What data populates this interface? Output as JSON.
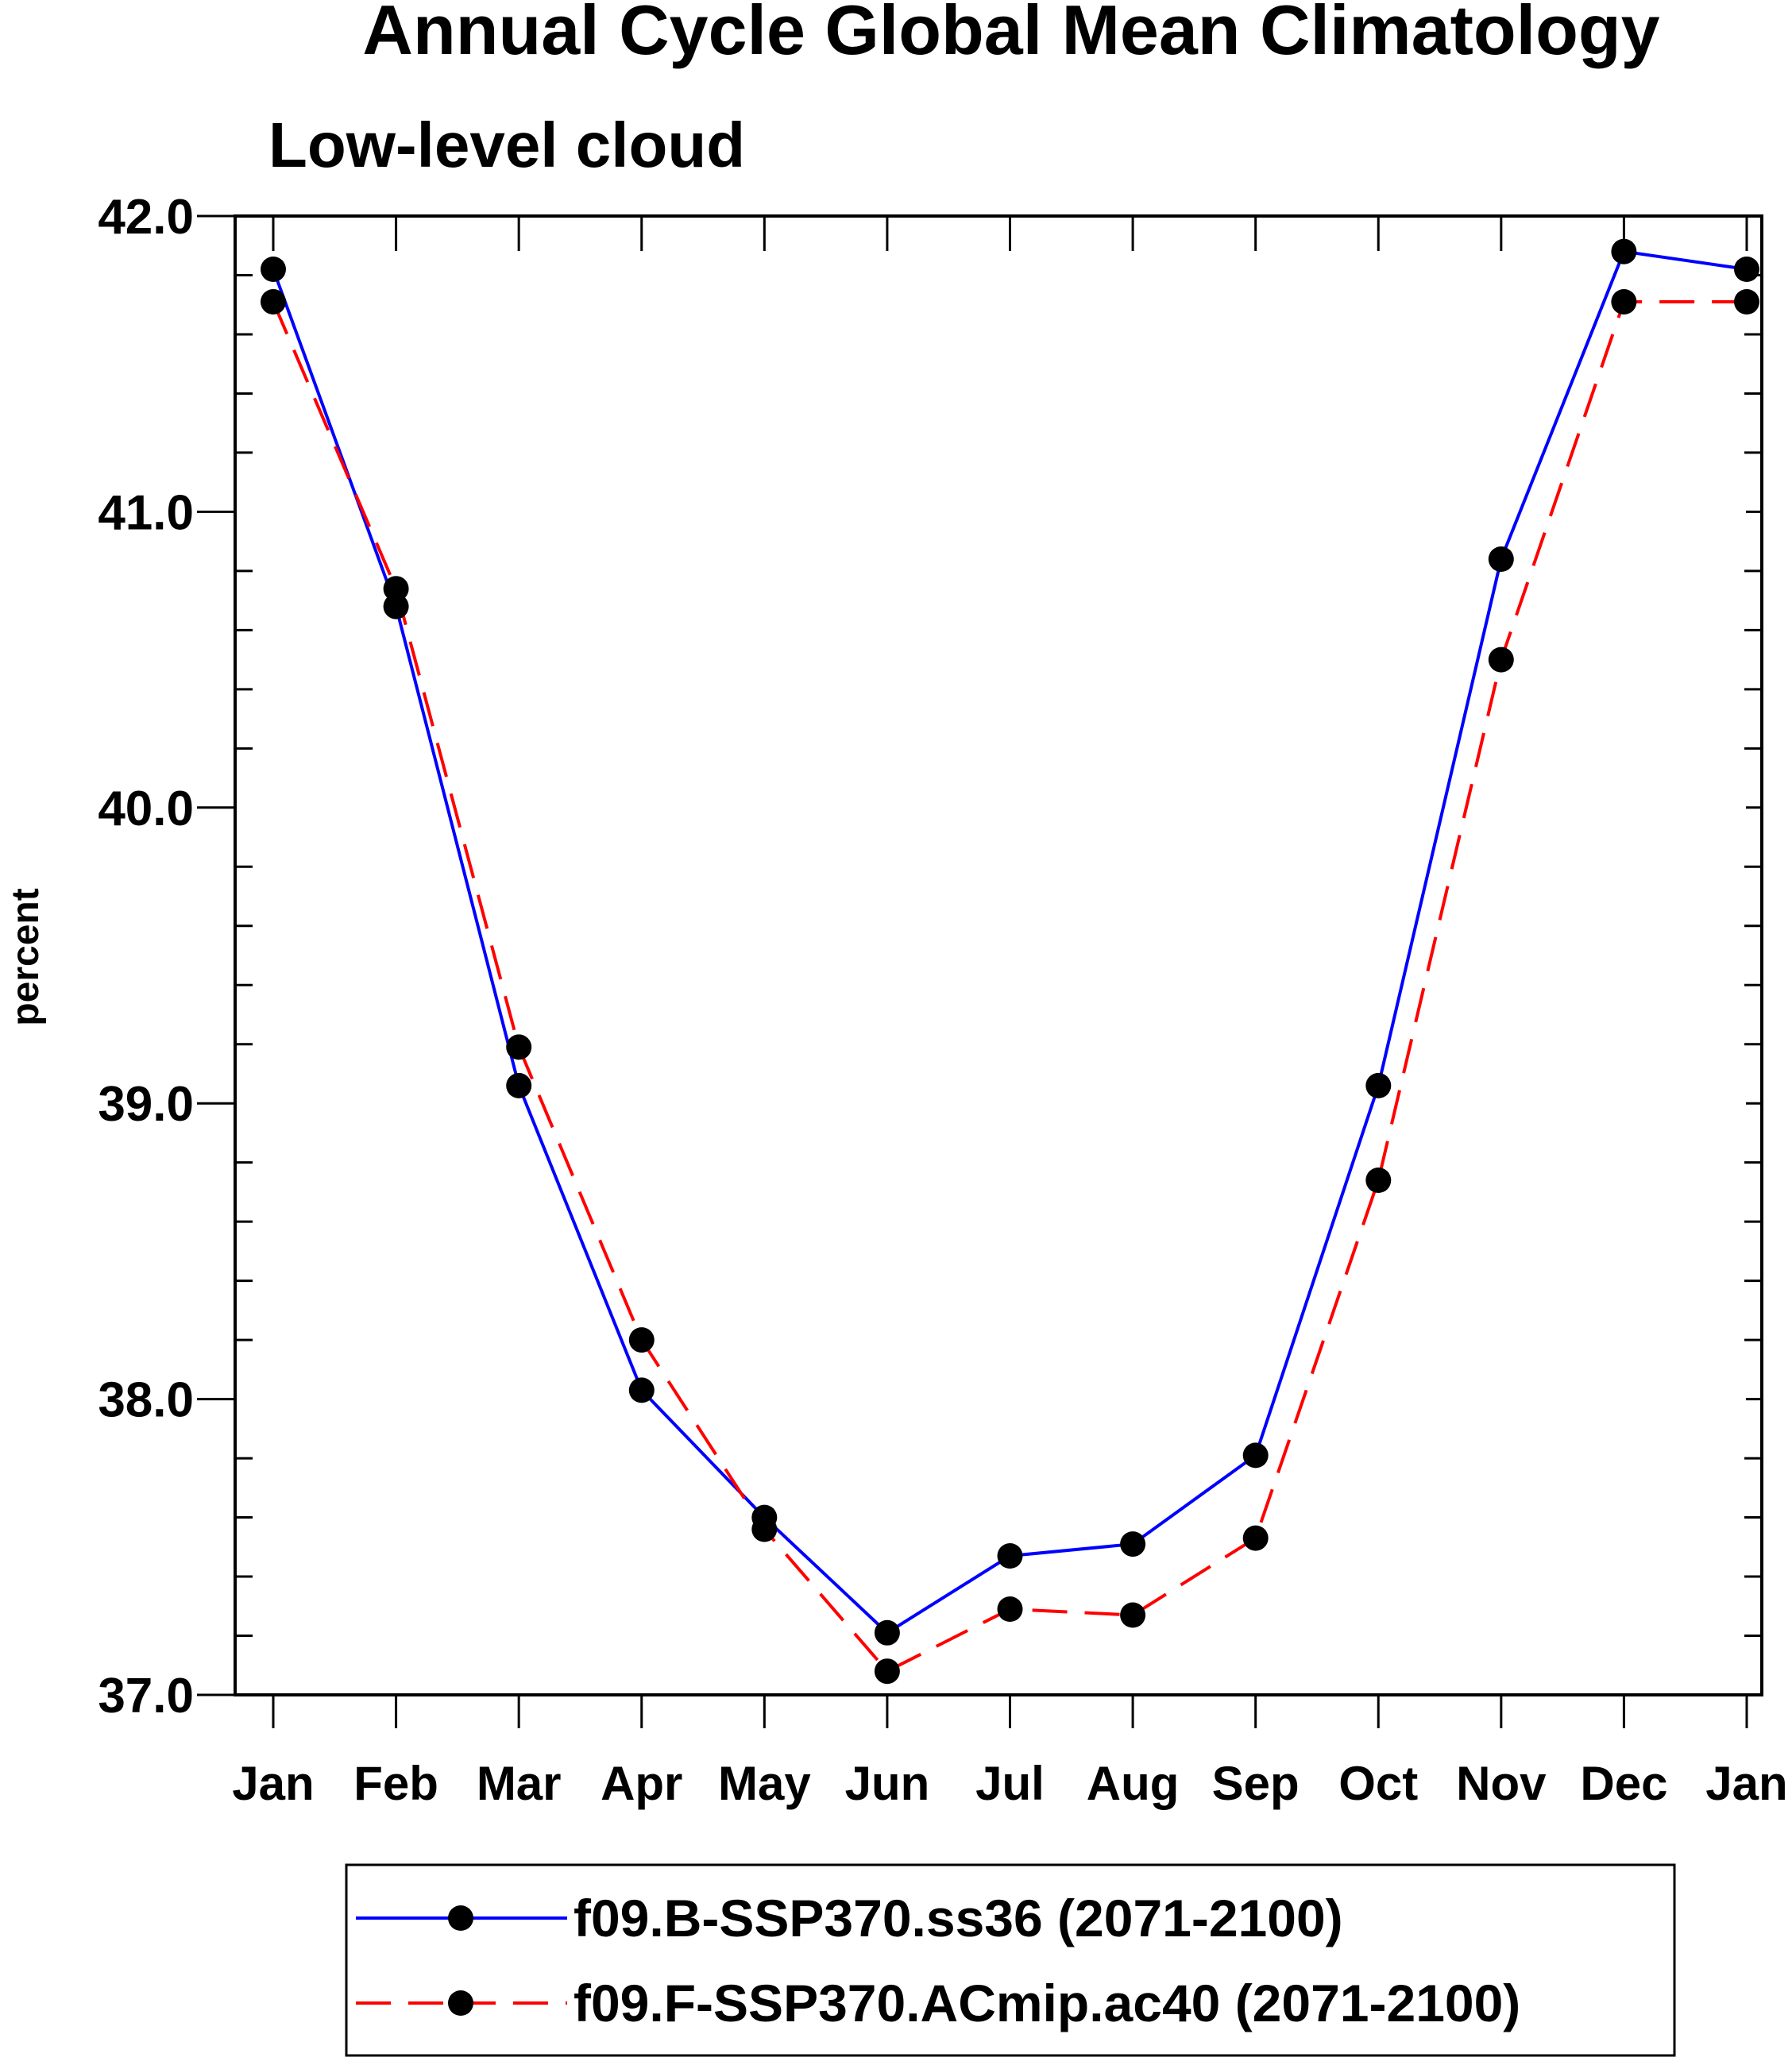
{
  "chart_data": {
    "type": "line",
    "title": "Annual Cycle Global Mean Climatology",
    "subtitle": "Low-level cloud",
    "xlabel": "",
    "ylabel": "percent",
    "categories": [
      "Jan",
      "Feb",
      "Mar",
      "Apr",
      "May",
      "Jun",
      "Jul",
      "Aug",
      "Sep",
      "Oct",
      "Nov",
      "Dec",
      "Jan"
    ],
    "ylim": [
      37.0,
      42.0
    ],
    "yticks": [
      "37.0",
      "38.0",
      "39.0",
      "40.0",
      "41.0",
      "42.0"
    ],
    "grid": false,
    "legend_position": "bottom-center",
    "series": [
      {
        "name": "f09.B-SSP370.ss36 (2071-2100)",
        "color": "#0000ff",
        "dash": "solid",
        "marker": "filled-circle",
        "values": [
          41.82,
          40.68,
          39.06,
          38.03,
          37.6,
          37.21,
          37.47,
          37.51,
          37.81,
          39.06,
          40.84,
          41.88,
          41.82
        ]
      },
      {
        "name": "f09.F-SSP370.ACmip.ac40 (2071-2100)",
        "color": "#ff0000",
        "dash": "dashed",
        "marker": "filled-circle",
        "values": [
          41.71,
          40.74,
          39.19,
          38.2,
          37.56,
          37.08,
          37.29,
          37.27,
          37.53,
          38.74,
          40.5,
          41.71,
          41.71
        ]
      }
    ]
  }
}
